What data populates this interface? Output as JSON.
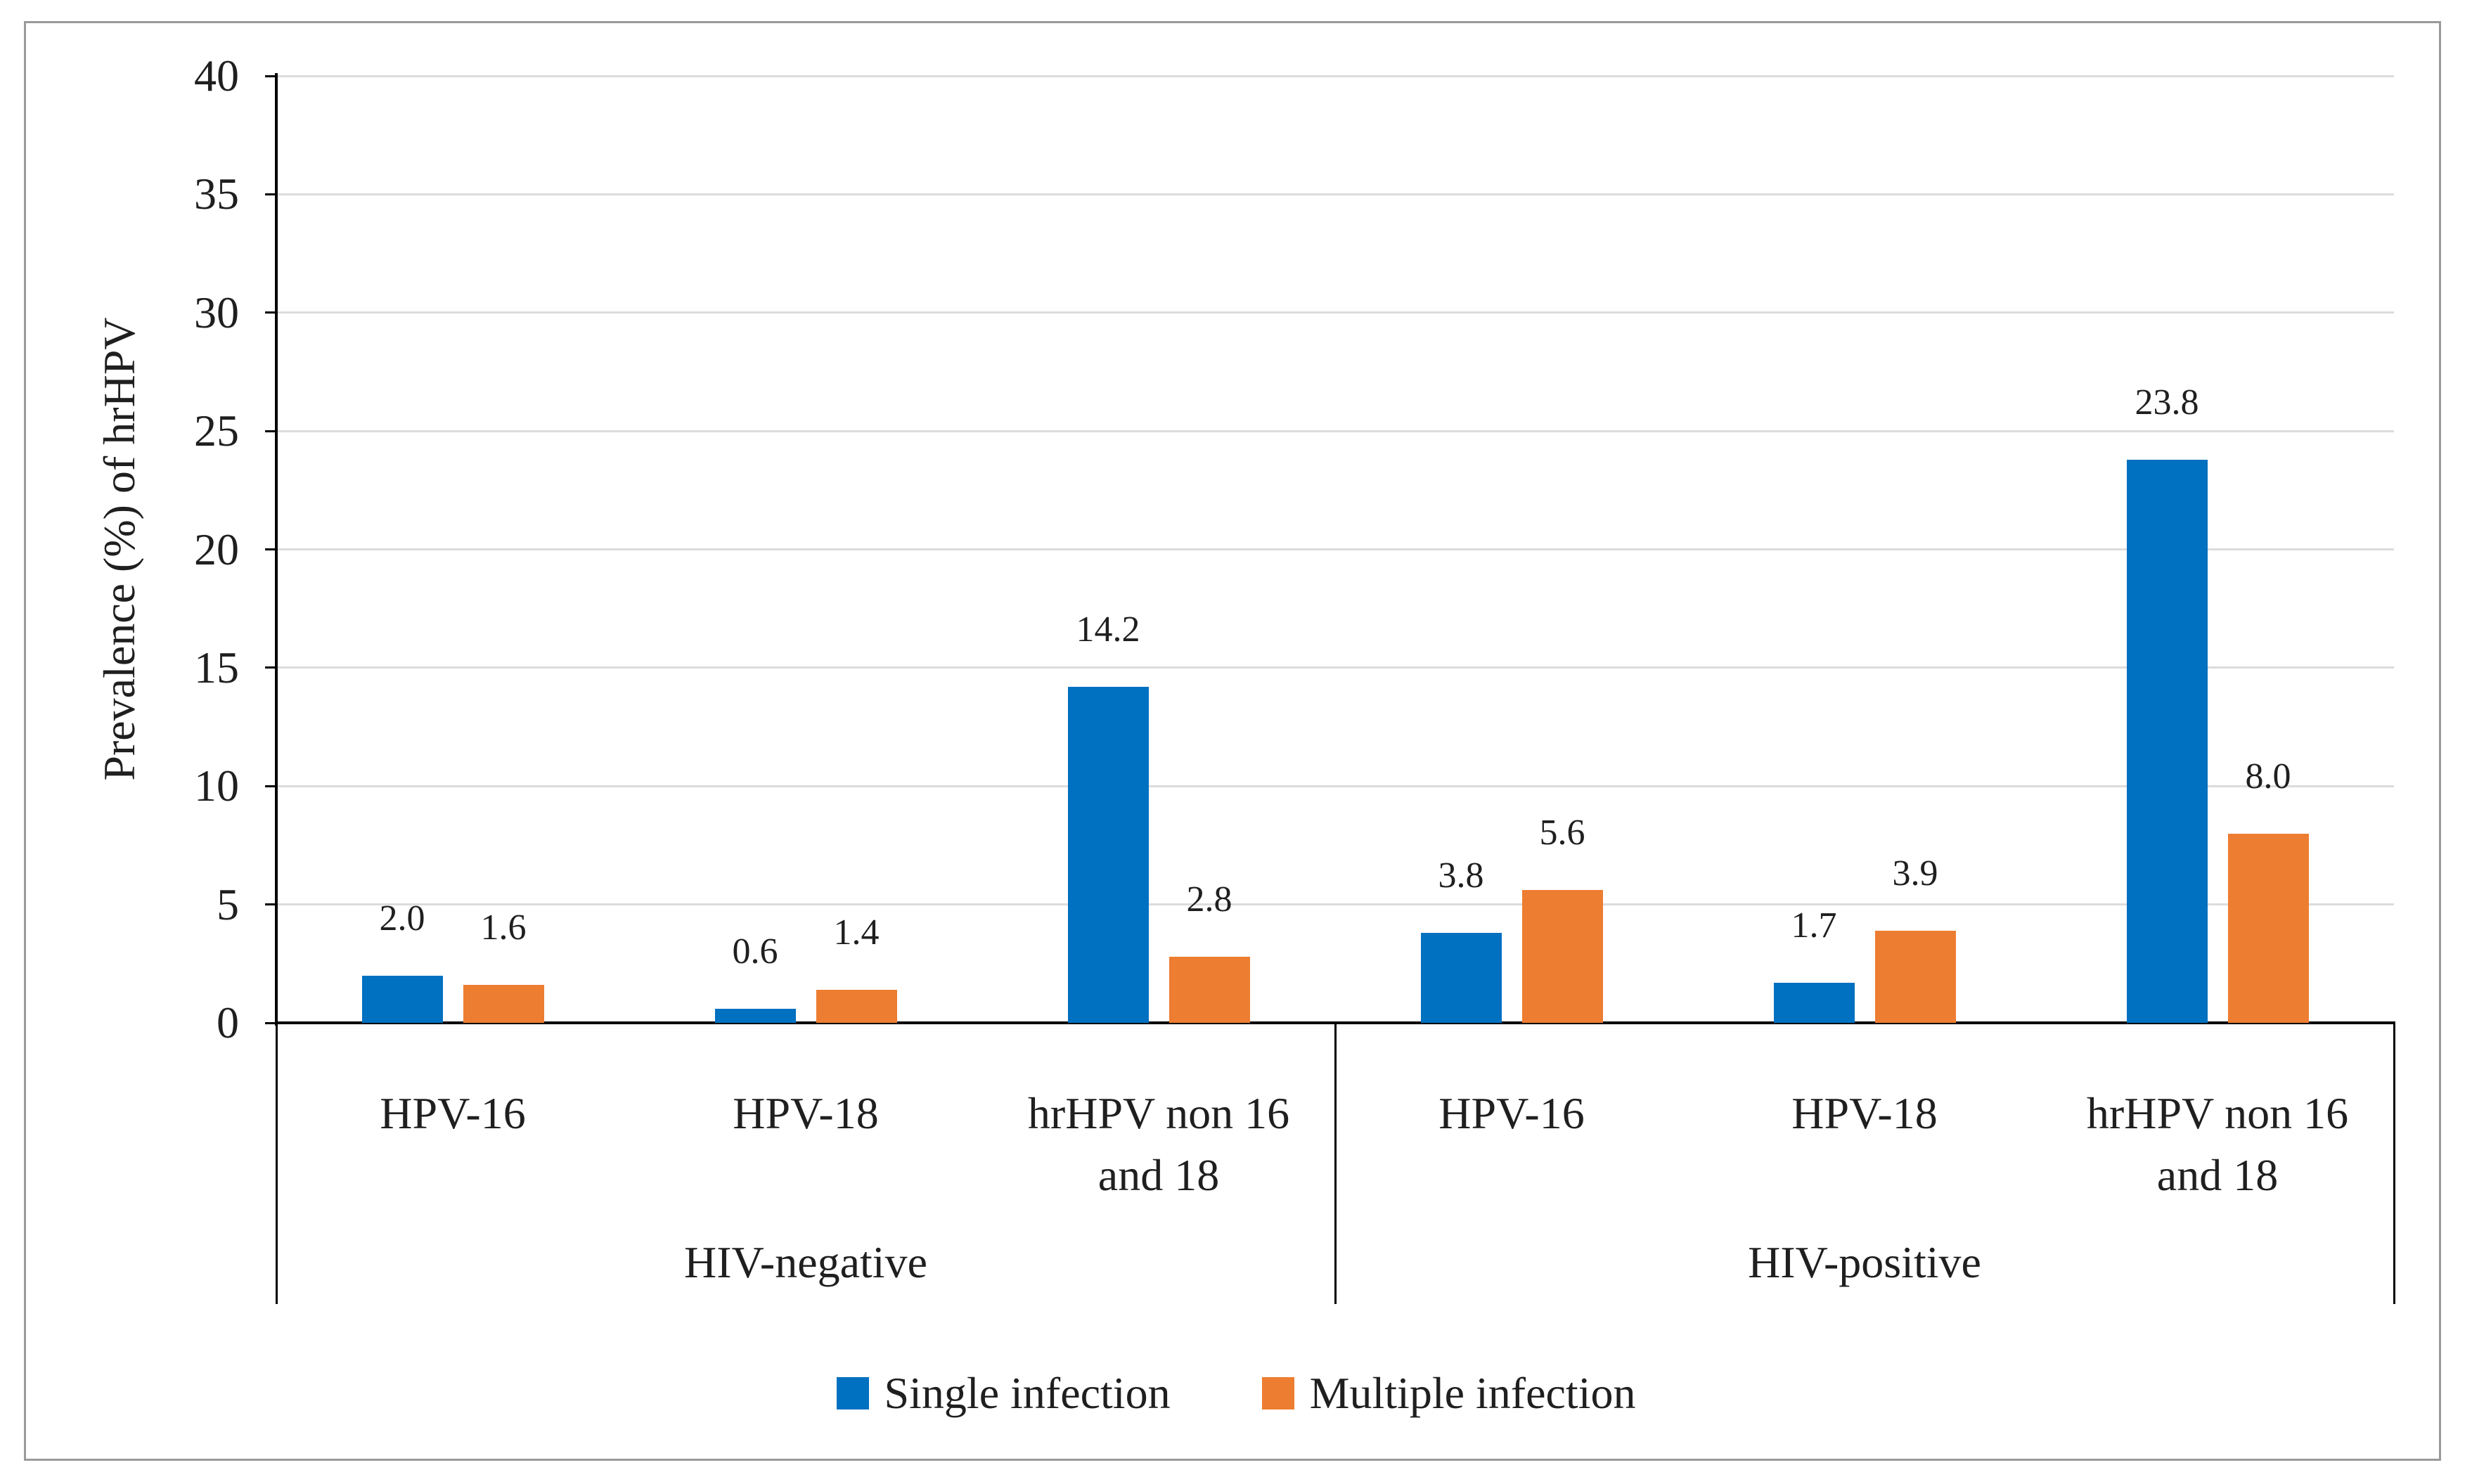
{
  "figure": {
    "background": "#FFFFFF",
    "border_color": "#9A9A9A"
  },
  "chart_data": {
    "type": "bar",
    "title": "",
    "ylabel": "Prevalence (%) of hrHPV",
    "xlabel": "",
    "ylim": [
      0,
      40
    ],
    "yticks": [
      0,
      5,
      10,
      15,
      20,
      25,
      30,
      35,
      40
    ],
    "grid": true,
    "legend_position": "bottom",
    "value_label_decimals": 1,
    "groups": [
      {
        "label": "HIV-negative",
        "categories": [
          [
            "HPV-16"
          ],
          [
            "HPV-18"
          ],
          [
            "hrHPV non 16",
            "and 18"
          ]
        ]
      },
      {
        "label": "HIV-positive",
        "categories": [
          [
            "HPV-16"
          ],
          [
            "HPV-18"
          ],
          [
            "hrHPV non 16",
            "and 18"
          ]
        ]
      }
    ],
    "series": [
      {
        "name": "Single infection",
        "color": "#0070C0",
        "values": [
          2.0,
          0.6,
          14.2,
          3.8,
          1.7,
          23.8
        ]
      },
      {
        "name": "Multiple infection",
        "color": "#ED7D31",
        "values": [
          1.6,
          1.4,
          2.8,
          5.6,
          3.9,
          8.0
        ]
      }
    ],
    "colors": {
      "axis": "#000000",
      "gridline": "#DCDCDC",
      "text": "#1F1F1F"
    }
  }
}
